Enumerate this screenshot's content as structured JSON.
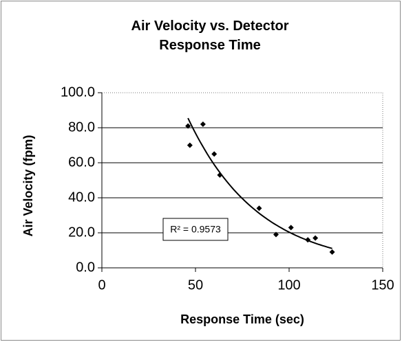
{
  "chart_data": {
    "type": "scatter",
    "title": "Air Velocity vs. Detector Response Time",
    "xlabel": "Response Time (sec)",
    "ylabel": "Air Velocity (fpm)",
    "x": [
      46,
      47,
      54,
      60,
      63,
      84,
      93,
      101,
      110,
      114,
      123
    ],
    "values": [
      81,
      70,
      82,
      65,
      53,
      34,
      19,
      23,
      16,
      17,
      9
    ],
    "color": "#000000",
    "trendline": "exponential",
    "annotation": "R² = 0.9573",
    "xlim": [
      0,
      150
    ],
    "xticks": [
      0,
      50,
      100,
      150
    ],
    "ylim": [
      0,
      100
    ],
    "yticks": [
      {
        "value": 0,
        "label": "0.0"
      },
      {
        "value": 20,
        "label": "20.0"
      },
      {
        "value": 40,
        "label": "40.0"
      },
      {
        "value": 60,
        "label": "60.0"
      },
      {
        "value": 80,
        "label": "80.0"
      },
      {
        "value": 100,
        "label": "100.0"
      }
    ],
    "grid": true
  }
}
